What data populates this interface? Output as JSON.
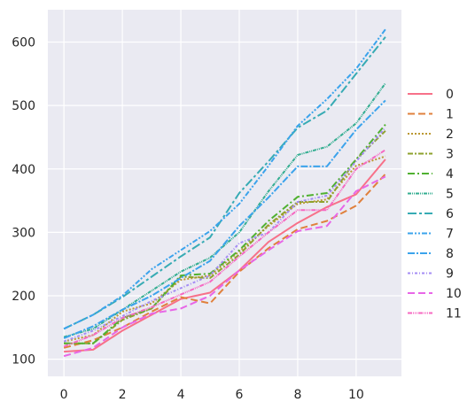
{
  "colors": {
    "background": "#EAEAF2",
    "grid": "#FFFFFF"
  },
  "chart_data": {
    "type": "line",
    "title": "",
    "xlabel": "",
    "ylabel": "",
    "xlim": [
      -0.55,
      11.55
    ],
    "ylim": [
      73,
      651
    ],
    "grid": true,
    "legend_position": "right",
    "x": [
      0,
      1,
      2,
      3,
      4,
      5,
      6,
      7,
      8,
      9,
      10,
      11
    ],
    "x_ticks": [
      0,
      2,
      4,
      6,
      8,
      10
    ],
    "y_ticks": [
      100,
      200,
      300,
      400,
      500,
      600
    ],
    "series": [
      {
        "name": "0",
        "color": "#F77189",
        "dash": "",
        "values": [
          112,
          115,
          145,
          170,
          195,
          205,
          240,
          285,
          315,
          340,
          360,
          415
        ]
      },
      {
        "name": "1",
        "color": "#E0803C",
        "dash": "8,4",
        "values": [
          118,
          130,
          150,
          175,
          198,
          188,
          238,
          275,
          305,
          318,
          342,
          392
        ]
      },
      {
        "name": "2",
        "color": "#BB9832",
        "dash": "2,2",
        "values": [
          128,
          138,
          175,
          188,
          225,
          232,
          270,
          310,
          345,
          352,
          405,
          420
        ]
      },
      {
        "name": "3",
        "color": "#8EA22D",
        "dash": "6,2,2,2",
        "values": [
          125,
          125,
          162,
          180,
          230,
          228,
          265,
          312,
          348,
          348,
          415,
          460
        ]
      },
      {
        "name": "4",
        "color": "#50B131",
        "dash": "8,3,2,3",
        "values": [
          125,
          125,
          165,
          180,
          232,
          235,
          272,
          318,
          356,
          362,
          415,
          470
        ]
      },
      {
        "name": "5",
        "color": "#34AE91",
        "dash": "4,1,1,1,1,1",
        "values": [
          135,
          148,
          178,
          208,
          238,
          260,
          300,
          365,
          422,
          435,
          472,
          535
        ]
      },
      {
        "name": "6",
        "color": "#37ABB4",
        "dash": "10,3,3,3",
        "values": [
          148,
          170,
          198,
          230,
          262,
          292,
          362,
          412,
          465,
          492,
          550,
          608
        ]
      },
      {
        "name": "7",
        "color": "#3BA3EC",
        "dash": "6,2,2,2,2,2",
        "values": [
          148,
          170,
          200,
          242,
          272,
          302,
          345,
          405,
          468,
          510,
          558,
          620
        ]
      },
      {
        "name": "8",
        "color": "#3BA3EC",
        "dash": "8,2,2,2",
        "values": [
          133,
          152,
          178,
          200,
          228,
          255,
          310,
          355,
          404,
          404,
          462,
          508
        ]
      },
      {
        "name": "9",
        "color": "#A48CF4",
        "dash": "3,2,1,2",
        "values": [
          128,
          145,
          168,
          192,
          212,
          232,
          283,
          300,
          348,
          358,
          412,
          465
        ]
      },
      {
        "name": "10",
        "color": "#E866E7",
        "dash": "8,4",
        "values": [
          105,
          118,
          150,
          172,
          180,
          200,
          240,
          272,
          302,
          310,
          365,
          388
        ]
      },
      {
        "name": "11",
        "color": "#F668C2",
        "dash": "5,1,1,1,1,1,1,1",
        "values": [
          120,
          138,
          165,
          182,
          202,
          222,
          262,
          300,
          335,
          335,
          400,
          430
        ]
      }
    ]
  }
}
